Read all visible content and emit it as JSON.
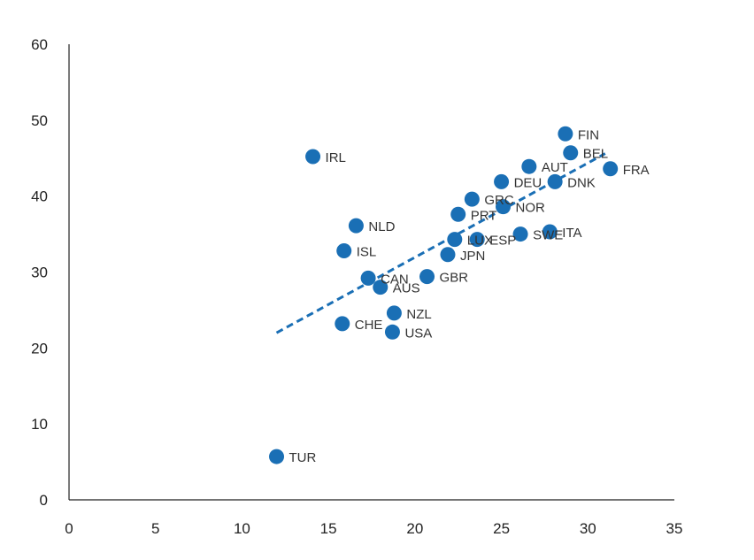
{
  "chart_data": {
    "type": "scatter",
    "title": "",
    "xlabel": "",
    "ylabel": "",
    "xlim": [
      0,
      35
    ],
    "ylim": [
      0,
      60
    ],
    "x_ticks": [
      0,
      5,
      10,
      15,
      20,
      25,
      30,
      35
    ],
    "y_ticks": [
      0,
      10,
      20,
      30,
      40,
      50,
      60
    ],
    "grid": false,
    "marker_color": "#1a6fb5",
    "points": [
      {
        "label": "FIN",
        "x": 28.7,
        "y": 48.2
      },
      {
        "label": "BEL",
        "x": 29.0,
        "y": 45.7
      },
      {
        "label": "IRL",
        "x": 14.1,
        "y": 45.2
      },
      {
        "label": "AUT",
        "x": 26.6,
        "y": 43.9
      },
      {
        "label": "FRA",
        "x": 31.3,
        "y": 43.6
      },
      {
        "label": "DEU",
        "x": 25.0,
        "y": 41.9
      },
      {
        "label": "DNK",
        "x": 28.1,
        "y": 41.9
      },
      {
        "label": "GRC",
        "x": 23.3,
        "y": 39.6
      },
      {
        "label": "NOR",
        "x": 25.1,
        "y": 38.6
      },
      {
        "label": "PRT",
        "x": 22.5,
        "y": 37.6
      },
      {
        "label": "NLD",
        "x": 16.6,
        "y": 36.1
      },
      {
        "label": "ITA",
        "x": 27.8,
        "y": 35.3
      },
      {
        "label": "SWE",
        "x": 26.1,
        "y": 35.0
      },
      {
        "label": "LUX",
        "x": 22.3,
        "y": 34.3
      },
      {
        "label": "ESP",
        "x": 23.6,
        "y": 34.3
      },
      {
        "label": "ISL",
        "x": 15.9,
        "y": 32.8
      },
      {
        "label": "JPN",
        "x": 21.9,
        "y": 32.3
      },
      {
        "label": "GBR",
        "x": 20.7,
        "y": 29.4
      },
      {
        "label": "CAN",
        "x": 17.3,
        "y": 29.2
      },
      {
        "label": "AUS",
        "x": 18.0,
        "y": 28.0
      },
      {
        "label": "NZL",
        "x": 18.8,
        "y": 24.6
      },
      {
        "label": "CHE",
        "x": 15.8,
        "y": 23.2
      },
      {
        "label": "USA",
        "x": 18.7,
        "y": 22.1
      },
      {
        "label": "TUR",
        "x": 12.0,
        "y": 5.7
      }
    ],
    "trendline": {
      "style": "dashed",
      "x": [
        12.0,
        31.0
      ],
      "y": [
        22.0,
        45.6
      ]
    }
  }
}
